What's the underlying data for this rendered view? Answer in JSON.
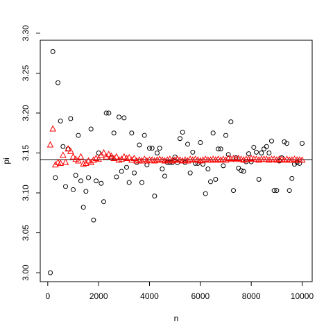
{
  "chart_data": {
    "type": "scatter",
    "x_label": "n",
    "y_label": "pi",
    "x": [
      100,
      200,
      300,
      400,
      500,
      600,
      700,
      800,
      900,
      1000,
      1100,
      1200,
      1300,
      1400,
      1500,
      1600,
      1700,
      1800,
      1900,
      2000,
      2100,
      2200,
      2300,
      2400,
      2500,
      2600,
      2700,
      2800,
      2900,
      3000,
      3100,
      3200,
      3300,
      3400,
      3500,
      3600,
      3700,
      3800,
      3900,
      4000,
      4100,
      4200,
      4300,
      4400,
      4500,
      4600,
      4700,
      4800,
      4900,
      5000,
      5100,
      5200,
      5300,
      5400,
      5500,
      5600,
      5700,
      5800,
      5900,
      6000,
      6100,
      6200,
      6300,
      6400,
      6500,
      6600,
      6700,
      6800,
      6900,
      7000,
      7100,
      7200,
      7300,
      7400,
      7500,
      7600,
      7700,
      7800,
      7900,
      8000,
      8100,
      8200,
      8300,
      8400,
      8500,
      8600,
      8700,
      8800,
      8900,
      9000,
      9100,
      9200,
      9300,
      9400,
      9500,
      9600,
      9700,
      9800,
      9900,
      10000
    ],
    "series": [
      {
        "color": "#000000",
        "marker": "circle",
        "values": [
          3.0,
          3.277,
          3.119,
          3.238,
          3.19,
          3.158,
          3.108,
          3.155,
          3.193,
          3.104,
          3.122,
          3.172,
          3.115,
          3.082,
          3.102,
          3.119,
          3.18,
          3.066,
          3.115,
          3.15,
          3.112,
          3.089,
          3.2,
          3.2,
          3.144,
          3.175,
          3.12,
          3.195,
          3.127,
          3.194,
          3.132,
          3.113,
          3.175,
          3.125,
          3.138,
          3.16,
          3.113,
          3.172,
          3.135,
          3.156,
          3.156,
          3.096,
          3.15,
          3.156,
          3.13,
          3.121,
          3.138,
          3.138,
          3.138,
          3.145,
          3.138,
          3.168,
          3.176,
          3.138,
          3.161,
          3.125,
          3.151,
          3.137,
          3.137,
          3.163,
          3.136,
          3.099,
          3.13,
          3.114,
          3.175,
          3.117,
          3.155,
          3.155,
          3.134,
          3.172,
          3.148,
          3.189,
          3.103,
          3.144,
          3.131,
          3.128,
          3.127,
          3.139,
          3.149,
          3.139,
          3.157,
          3.151,
          3.117,
          3.15,
          3.155,
          3.158,
          3.15,
          3.165,
          3.103,
          3.103,
          3.14,
          3.144,
          3.164,
          3.162,
          3.103,
          3.118,
          3.136,
          3.138,
          3.137,
          3.162
        ]
      },
      {
        "color": "#ff0000",
        "marker": "triangle",
        "values": [
          3.16,
          3.18,
          3.135,
          3.138,
          3.137,
          3.147,
          3.138,
          3.155,
          3.152,
          3.145,
          3.142,
          3.14,
          3.145,
          3.136,
          3.137,
          3.14,
          3.138,
          3.141,
          3.143,
          3.142,
          3.147,
          3.15,
          3.145,
          3.148,
          3.146,
          3.143,
          3.145,
          3.141,
          3.142,
          3.145,
          3.143,
          3.144,
          3.141,
          3.143,
          3.14,
          3.141,
          3.14,
          3.142,
          3.14,
          3.141,
          3.141,
          3.14,
          3.141,
          3.142,
          3.141,
          3.14,
          3.141,
          3.142,
          3.14,
          3.141,
          3.142,
          3.141,
          3.14,
          3.141,
          3.14,
          3.142,
          3.141,
          3.142,
          3.141,
          3.14,
          3.141,
          3.142,
          3.141,
          3.141,
          3.142,
          3.141,
          3.142,
          3.141,
          3.142,
          3.141,
          3.143,
          3.142,
          3.143,
          3.142,
          3.143,
          3.142,
          3.141,
          3.142,
          3.142,
          3.143,
          3.142,
          3.142,
          3.141,
          3.142,
          3.142,
          3.142,
          3.141,
          3.142,
          3.142,
          3.141,
          3.142,
          3.142,
          3.141,
          3.142,
          3.141,
          3.141,
          3.142,
          3.141,
          3.141,
          3.141
        ]
      }
    ],
    "hline": 3.141593,
    "xlim": [
      -296,
      10396
    ],
    "ylim": [
      2.9888,
      3.2912
    ],
    "xticks": [
      0,
      2000,
      4000,
      6000,
      8000,
      10000
    ],
    "yticks": [
      {
        "value": 3.0,
        "label": "3.00"
      },
      {
        "value": 3.05,
        "label": "3.05"
      },
      {
        "value": 3.1,
        "label": "3.10"
      },
      {
        "value": 3.15,
        "label": "3.15"
      },
      {
        "value": 3.2,
        "label": "3.20"
      },
      {
        "value": 3.25,
        "label": "3.25"
      },
      {
        "value": 3.3,
        "label": "3.30"
      }
    ]
  }
}
